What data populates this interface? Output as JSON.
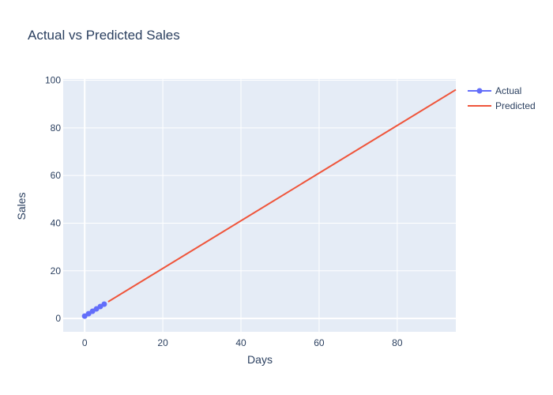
{
  "chart_data": {
    "type": "line",
    "title": "Actual vs Predicted Sales",
    "xlabel": "Days",
    "ylabel": "Sales",
    "xlim": [
      -5.5,
      95
    ],
    "ylim": [
      -5.6,
      100.5
    ],
    "xticks": [
      0,
      20,
      40,
      60,
      80
    ],
    "yticks": [
      0,
      20,
      40,
      60,
      80,
      100
    ],
    "grid": true,
    "legend_position": "top-right",
    "series": [
      {
        "name": "Actual",
        "mode": "lines+markers",
        "color": "#636efa",
        "x": [
          0,
          1,
          2,
          3,
          4,
          5
        ],
        "y": [
          1,
          2,
          3,
          4,
          5,
          6
        ]
      },
      {
        "name": "Predicted",
        "mode": "lines",
        "color": "#ef553b",
        "x": [
          6,
          95
        ],
        "y": [
          7,
          96
        ]
      }
    ]
  },
  "colors": {
    "plot_background": "#e5ecf6",
    "grid": "#ffffff",
    "text": "#2a3f5f"
  }
}
